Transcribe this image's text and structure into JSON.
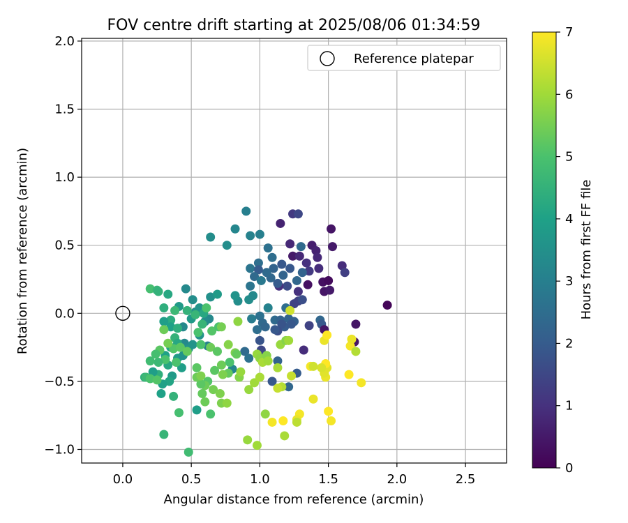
{
  "chart_data": {
    "type": "scatter",
    "title": "FOV centre drift starting at 2025/08/06 01:34:59",
    "xlabel": "Angular distance from reference (arcmin)",
    "ylabel": "Rotation from reference (arcmin)",
    "xlim": [
      -0.3,
      2.8
    ],
    "ylim": [
      -1.1,
      2.02
    ],
    "xticks": [
      0.0,
      0.5,
      1.0,
      1.5,
      2.0,
      2.5
    ],
    "xtick_labels": [
      "0.0",
      "0.5",
      "1.0",
      "1.5",
      "2.0",
      "2.5"
    ],
    "yticks": [
      -1.0,
      -0.5,
      0.0,
      0.5,
      1.0,
      1.5,
      2.0
    ],
    "ytick_labels": [
      "−1.0",
      "−0.5",
      "0.0",
      "0.5",
      "1.0",
      "1.5",
      "2.0"
    ],
    "grid": true,
    "legend": {
      "placement": "top-right",
      "entries": [
        "Reference platepar"
      ]
    },
    "reference_point": {
      "x": 0.0,
      "y": 0.0
    },
    "colorbar": {
      "label": "Hours from first FF file",
      "range": [
        0,
        7
      ],
      "ticks": [
        0,
        1,
        2,
        3,
        4,
        5,
        6,
        7
      ],
      "colormap": "viridis",
      "colormap_stops": [
        "#440154",
        "#46327e",
        "#365c8d",
        "#277f8e",
        "#1fa187",
        "#4ac16d",
        "#a0da39",
        "#fde725"
      ]
    },
    "series": [
      {
        "points": [
          [
            1.93,
            0.06,
            0.1
          ],
          [
            1.52,
            0.62,
            0.4
          ],
          [
            1.53,
            0.49,
            0.5
          ],
          [
            1.38,
            0.5,
            0.6
          ],
          [
            1.41,
            0.46,
            0.7
          ],
          [
            1.42,
            0.41,
            0.8
          ],
          [
            1.43,
            0.33,
            0.9
          ],
          [
            1.46,
            0.23,
            0.3
          ],
          [
            1.5,
            0.24,
            0.2
          ],
          [
            1.47,
            0.16,
            0.4
          ],
          [
            1.51,
            0.17,
            0.5
          ],
          [
            1.6,
            0.35,
            0.9
          ],
          [
            1.62,
            0.3,
            1.3
          ],
          [
            1.15,
            0.66,
            0.7
          ],
          [
            1.22,
            0.51,
            0.8
          ],
          [
            1.24,
            0.42,
            0.5
          ],
          [
            1.29,
            0.42,
            0.8
          ],
          [
            1.34,
            0.37,
            1.0
          ],
          [
            1.36,
            0.31,
            1.2
          ],
          [
            1.35,
            0.21,
            0.3
          ],
          [
            1.28,
            0.16,
            1.0
          ],
          [
            1.28,
            0.09,
            1.4
          ],
          [
            1.31,
            0.1,
            1.7
          ],
          [
            1.25,
            0.07,
            1.4
          ],
          [
            1.2,
            0.2,
            1.6
          ],
          [
            1.14,
            0.2,
            1.0
          ],
          [
            1.24,
            0.73,
            1.2
          ],
          [
            1.28,
            0.73,
            1.5
          ],
          [
            1.3,
            0.49,
            2.4
          ],
          [
            1.31,
            0.3,
            2.2
          ],
          [
            1.27,
            0.24,
            2.3
          ],
          [
            1.22,
            0.33,
            1.9
          ],
          [
            1.17,
            0.28,
            2.2
          ],
          [
            1.13,
            0.22,
            2.0
          ],
          [
            1.16,
            0.36,
            1.9
          ],
          [
            1.1,
            0.33,
            2.2
          ],
          [
            1.08,
            0.26,
            2.3
          ],
          [
            1.05,
            0.3,
            2.4
          ],
          [
            0.99,
            0.37,
            2.5
          ],
          [
            0.93,
            0.33,
            2.7
          ],
          [
            0.99,
            0.32,
            2.0
          ],
          [
            0.96,
            0.27,
            2.4
          ],
          [
            1.01,
            0.24,
            2.8
          ],
          [
            0.93,
            0.2,
            2.7
          ],
          [
            1.06,
            0.48,
            2.6
          ],
          [
            1.09,
            0.41,
            2.5
          ],
          [
            1.0,
            0.58,
            3.0
          ],
          [
            0.93,
            0.57,
            3.1
          ],
          [
            0.9,
            0.75,
            3.0
          ],
          [
            0.82,
            0.62,
            3.2
          ],
          [
            0.76,
            0.5,
            3.4
          ],
          [
            0.64,
            0.56,
            3.4
          ],
          [
            0.92,
            0.1,
            3.4
          ],
          [
            0.95,
            0.13,
            3.3
          ],
          [
            0.84,
            0.09,
            3.4
          ],
          [
            0.82,
            0.13,
            3.6
          ],
          [
            1.06,
            0.04,
            3.1
          ],
          [
            0.94,
            -0.04,
            2.9
          ],
          [
            0.98,
            -0.12,
            2.5
          ],
          [
            1.0,
            -0.02,
            2.6
          ],
          [
            1.02,
            -0.07,
            2.4
          ],
          [
            1.04,
            -0.1,
            2.3
          ],
          [
            1.11,
            -0.05,
            2.4
          ],
          [
            1.15,
            -0.05,
            2.2
          ],
          [
            1.18,
            -0.1,
            2.0
          ],
          [
            1.19,
            0.04,
            2.5
          ],
          [
            1.21,
            -0.04,
            2.2
          ],
          [
            1.25,
            -0.06,
            2.1
          ],
          [
            1.23,
            -0.08,
            1.9
          ],
          [
            1.16,
            -0.08,
            1.8
          ],
          [
            1.13,
            -0.13,
            1.7
          ],
          [
            1.11,
            -0.12,
            1.9
          ],
          [
            1.44,
            -0.05,
            2.3
          ],
          [
            1.45,
            -0.08,
            1.9
          ],
          [
            1.47,
            -0.12,
            0.4
          ],
          [
            1.7,
            -0.08,
            0.4
          ],
          [
            1.69,
            -0.21,
            0.4
          ],
          [
            1.36,
            -0.09,
            1.4
          ],
          [
            1.32,
            -0.27,
            0.9
          ],
          [
            1.0,
            -0.2,
            1.8
          ],
          [
            1.01,
            -0.27,
            1.5
          ],
          [
            1.02,
            -0.32,
            1.7
          ],
          [
            0.89,
            -0.28,
            2.4
          ],
          [
            0.92,
            -0.33,
            2.6
          ],
          [
            1.13,
            -0.35,
            2.2
          ],
          [
            1.09,
            -0.5,
            1.9
          ],
          [
            1.27,
            -0.44,
            2.0
          ],
          [
            1.21,
            -0.54,
            2.3
          ],
          [
            0.8,
            -0.41,
            3.2
          ],
          [
            0.62,
            -0.24,
            3.1
          ],
          [
            0.63,
            -0.04,
            3.3
          ],
          [
            0.64,
            0.12,
            3.5
          ],
          [
            0.69,
            0.14,
            3.8
          ],
          [
            0.46,
            0.18,
            3.3
          ],
          [
            0.51,
            0.1,
            3.4
          ],
          [
            0.53,
            0.01,
            3.5
          ],
          [
            0.56,
            0.04,
            3.6
          ],
          [
            0.6,
            -0.06,
            3.4
          ],
          [
            0.5,
            -0.04,
            3.8
          ],
          [
            0.56,
            -0.16,
            3.6
          ],
          [
            0.44,
            -0.1,
            3.3
          ],
          [
            0.45,
            -0.22,
            3.3
          ],
          [
            0.48,
            -0.26,
            3.6
          ],
          [
            0.51,
            -0.23,
            3.6
          ],
          [
            0.41,
            0.05,
            3.8
          ],
          [
            0.33,
            0.14,
            4.2
          ],
          [
            0.35,
            -0.05,
            4.3
          ],
          [
            0.3,
            -0.06,
            3.9
          ],
          [
            0.35,
            -0.1,
            4.0
          ],
          [
            0.4,
            -0.11,
            4.4
          ],
          [
            0.38,
            -0.18,
            4.5
          ],
          [
            0.4,
            -0.22,
            4.2
          ],
          [
            0.35,
            -0.25,
            4.1
          ],
          [
            0.31,
            -0.31,
            4.0
          ],
          [
            0.33,
            -0.38,
            4.2
          ],
          [
            0.4,
            -0.33,
            3.8
          ],
          [
            0.44,
            -0.31,
            3.6
          ],
          [
            0.43,
            -0.4,
            3.9
          ],
          [
            0.36,
            -0.46,
            3.8
          ],
          [
            0.34,
            -0.5,
            4.1
          ],
          [
            0.29,
            -0.52,
            4.0
          ],
          [
            0.26,
            -0.45,
            4.4
          ],
          [
            0.22,
            -0.43,
            3.9
          ],
          [
            0.16,
            -0.47,
            4.4
          ],
          [
            0.17,
            -0.47,
            4.7
          ],
          [
            0.2,
            0.18,
            4.9
          ],
          [
            0.25,
            0.17,
            4.6
          ],
          [
            0.26,
            0.16,
            4.5
          ],
          [
            0.3,
            0.04,
            4.4
          ],
          [
            0.38,
            0.02,
            4.7
          ],
          [
            0.47,
            0.02,
            4.5
          ],
          [
            0.53,
            -0.01,
            4.6
          ],
          [
            0.59,
            0.0,
            4.2
          ],
          [
            0.61,
            0.04,
            5.0
          ],
          [
            0.58,
            -0.08,
            4.6
          ],
          [
            0.55,
            -0.14,
            5.0
          ],
          [
            0.57,
            -0.23,
            5.0
          ],
          [
            0.65,
            -0.13,
            5.1
          ],
          [
            0.7,
            -0.1,
            5.0
          ],
          [
            0.72,
            -0.1,
            5.5
          ],
          [
            0.64,
            -0.25,
            5.4
          ],
          [
            0.69,
            -0.28,
            5.2
          ],
          [
            0.77,
            -0.23,
            5.7
          ],
          [
            0.82,
            -0.29,
            5.6
          ],
          [
            0.83,
            -0.3,
            5.3
          ],
          [
            0.84,
            -0.06,
            5.8
          ],
          [
            0.98,
            -0.3,
            5.9
          ],
          [
            1.0,
            -0.33,
            5.8
          ],
          [
            1.02,
            -0.36,
            6.1
          ],
          [
            1.05,
            -0.31,
            5.7
          ],
          [
            1.06,
            -0.35,
            6.0
          ],
          [
            1.13,
            -0.4,
            6.1
          ],
          [
            1.15,
            -0.23,
            5.9
          ],
          [
            1.19,
            -0.2,
            5.7
          ],
          [
            1.21,
            -0.2,
            6.0
          ],
          [
            1.22,
            0.02,
            6.5
          ],
          [
            1.16,
            -0.54,
            6.2
          ],
          [
            1.13,
            -0.55,
            6.4
          ],
          [
            1.23,
            -0.46,
            6.4
          ],
          [
            0.78,
            -0.36,
            5.0
          ],
          [
            0.77,
            -0.44,
            5.3
          ],
          [
            0.72,
            -0.38,
            5.4
          ],
          [
            0.73,
            -0.45,
            5.6
          ],
          [
            0.67,
            -0.42,
            5.2
          ],
          [
            0.62,
            -0.5,
            5.1
          ],
          [
            0.6,
            -0.53,
            5.4
          ],
          [
            0.57,
            -0.52,
            5.2
          ],
          [
            0.54,
            -0.47,
            5.4
          ],
          [
            0.54,
            -0.4,
            5.2
          ],
          [
            0.57,
            -0.46,
            5.6
          ],
          [
            0.66,
            -0.56,
            5.5
          ],
          [
            0.58,
            -0.59,
            5.3
          ],
          [
            0.6,
            -0.65,
            5.4
          ],
          [
            0.64,
            -0.74,
            5.0
          ],
          [
            0.71,
            -0.59,
            5.6
          ],
          [
            0.72,
            -0.66,
            5.6
          ],
          [
            0.76,
            -0.66,
            5.8
          ],
          [
            0.85,
            -0.47,
            5.7
          ],
          [
            0.86,
            -0.43,
            5.9
          ],
          [
            0.92,
            -0.56,
            5.9
          ],
          [
            0.96,
            -0.51,
            6.0
          ],
          [
            1.0,
            -0.47,
            6.1
          ],
          [
            0.98,
            -0.97,
            6.0
          ],
          [
            0.91,
            -0.93,
            5.9
          ],
          [
            1.18,
            -0.9,
            6.1
          ],
          [
            1.04,
            -0.74,
            5.8
          ],
          [
            0.54,
            -0.71,
            3.9
          ],
          [
            0.48,
            -1.02,
            4.8
          ],
          [
            0.3,
            -0.89,
            4.6
          ],
          [
            0.37,
            -0.61,
            4.5
          ],
          [
            0.28,
            -0.59,
            4.0
          ],
          [
            0.39,
            -0.36,
            5.0
          ],
          [
            0.37,
            -0.26,
            5.1
          ],
          [
            0.42,
            -0.25,
            5.2
          ],
          [
            0.47,
            -0.28,
            5.3
          ],
          [
            0.33,
            -0.22,
            5.5
          ],
          [
            0.3,
            -0.12,
            5.4
          ],
          [
            0.27,
            -0.27,
            5.2
          ],
          [
            0.31,
            -0.34,
            5.0
          ],
          [
            0.26,
            -0.36,
            4.7
          ],
          [
            0.2,
            -0.35,
            4.8
          ],
          [
            0.2,
            -0.48,
            5.0
          ],
          [
            0.25,
            -0.49,
            5.1
          ],
          [
            0.24,
            -0.3,
            4.9
          ],
          [
            0.41,
            -0.73,
            4.9
          ],
          [
            1.29,
            -0.74,
            6.9
          ],
          [
            1.27,
            -0.78,
            6.8
          ],
          [
            1.27,
            -0.8,
            6.3
          ],
          [
            1.17,
            -0.79,
            7.0
          ],
          [
            1.09,
            -0.8,
            6.9
          ],
          [
            1.39,
            -0.63,
            6.8
          ],
          [
            1.5,
            -0.72,
            7.0
          ],
          [
            1.52,
            -0.79,
            6.9
          ],
          [
            1.65,
            -0.45,
            7.0
          ],
          [
            1.74,
            -0.51,
            6.9
          ],
          [
            1.48,
            -0.47,
            6.8
          ],
          [
            1.47,
            -0.44,
            6.7
          ],
          [
            1.49,
            -0.4,
            6.7
          ],
          [
            1.48,
            -0.37,
            7.0
          ],
          [
            1.45,
            -0.4,
            6.6
          ],
          [
            1.37,
            -0.39,
            6.9
          ],
          [
            1.39,
            -0.39,
            6.5
          ],
          [
            1.47,
            -0.2,
            6.8
          ],
          [
            1.49,
            -0.16,
            7.0
          ],
          [
            1.66,
            -0.24,
            6.9
          ],
          [
            1.67,
            -0.19,
            6.8
          ],
          [
            1.7,
            -0.28,
            6.2
          ]
        ]
      }
    ]
  }
}
